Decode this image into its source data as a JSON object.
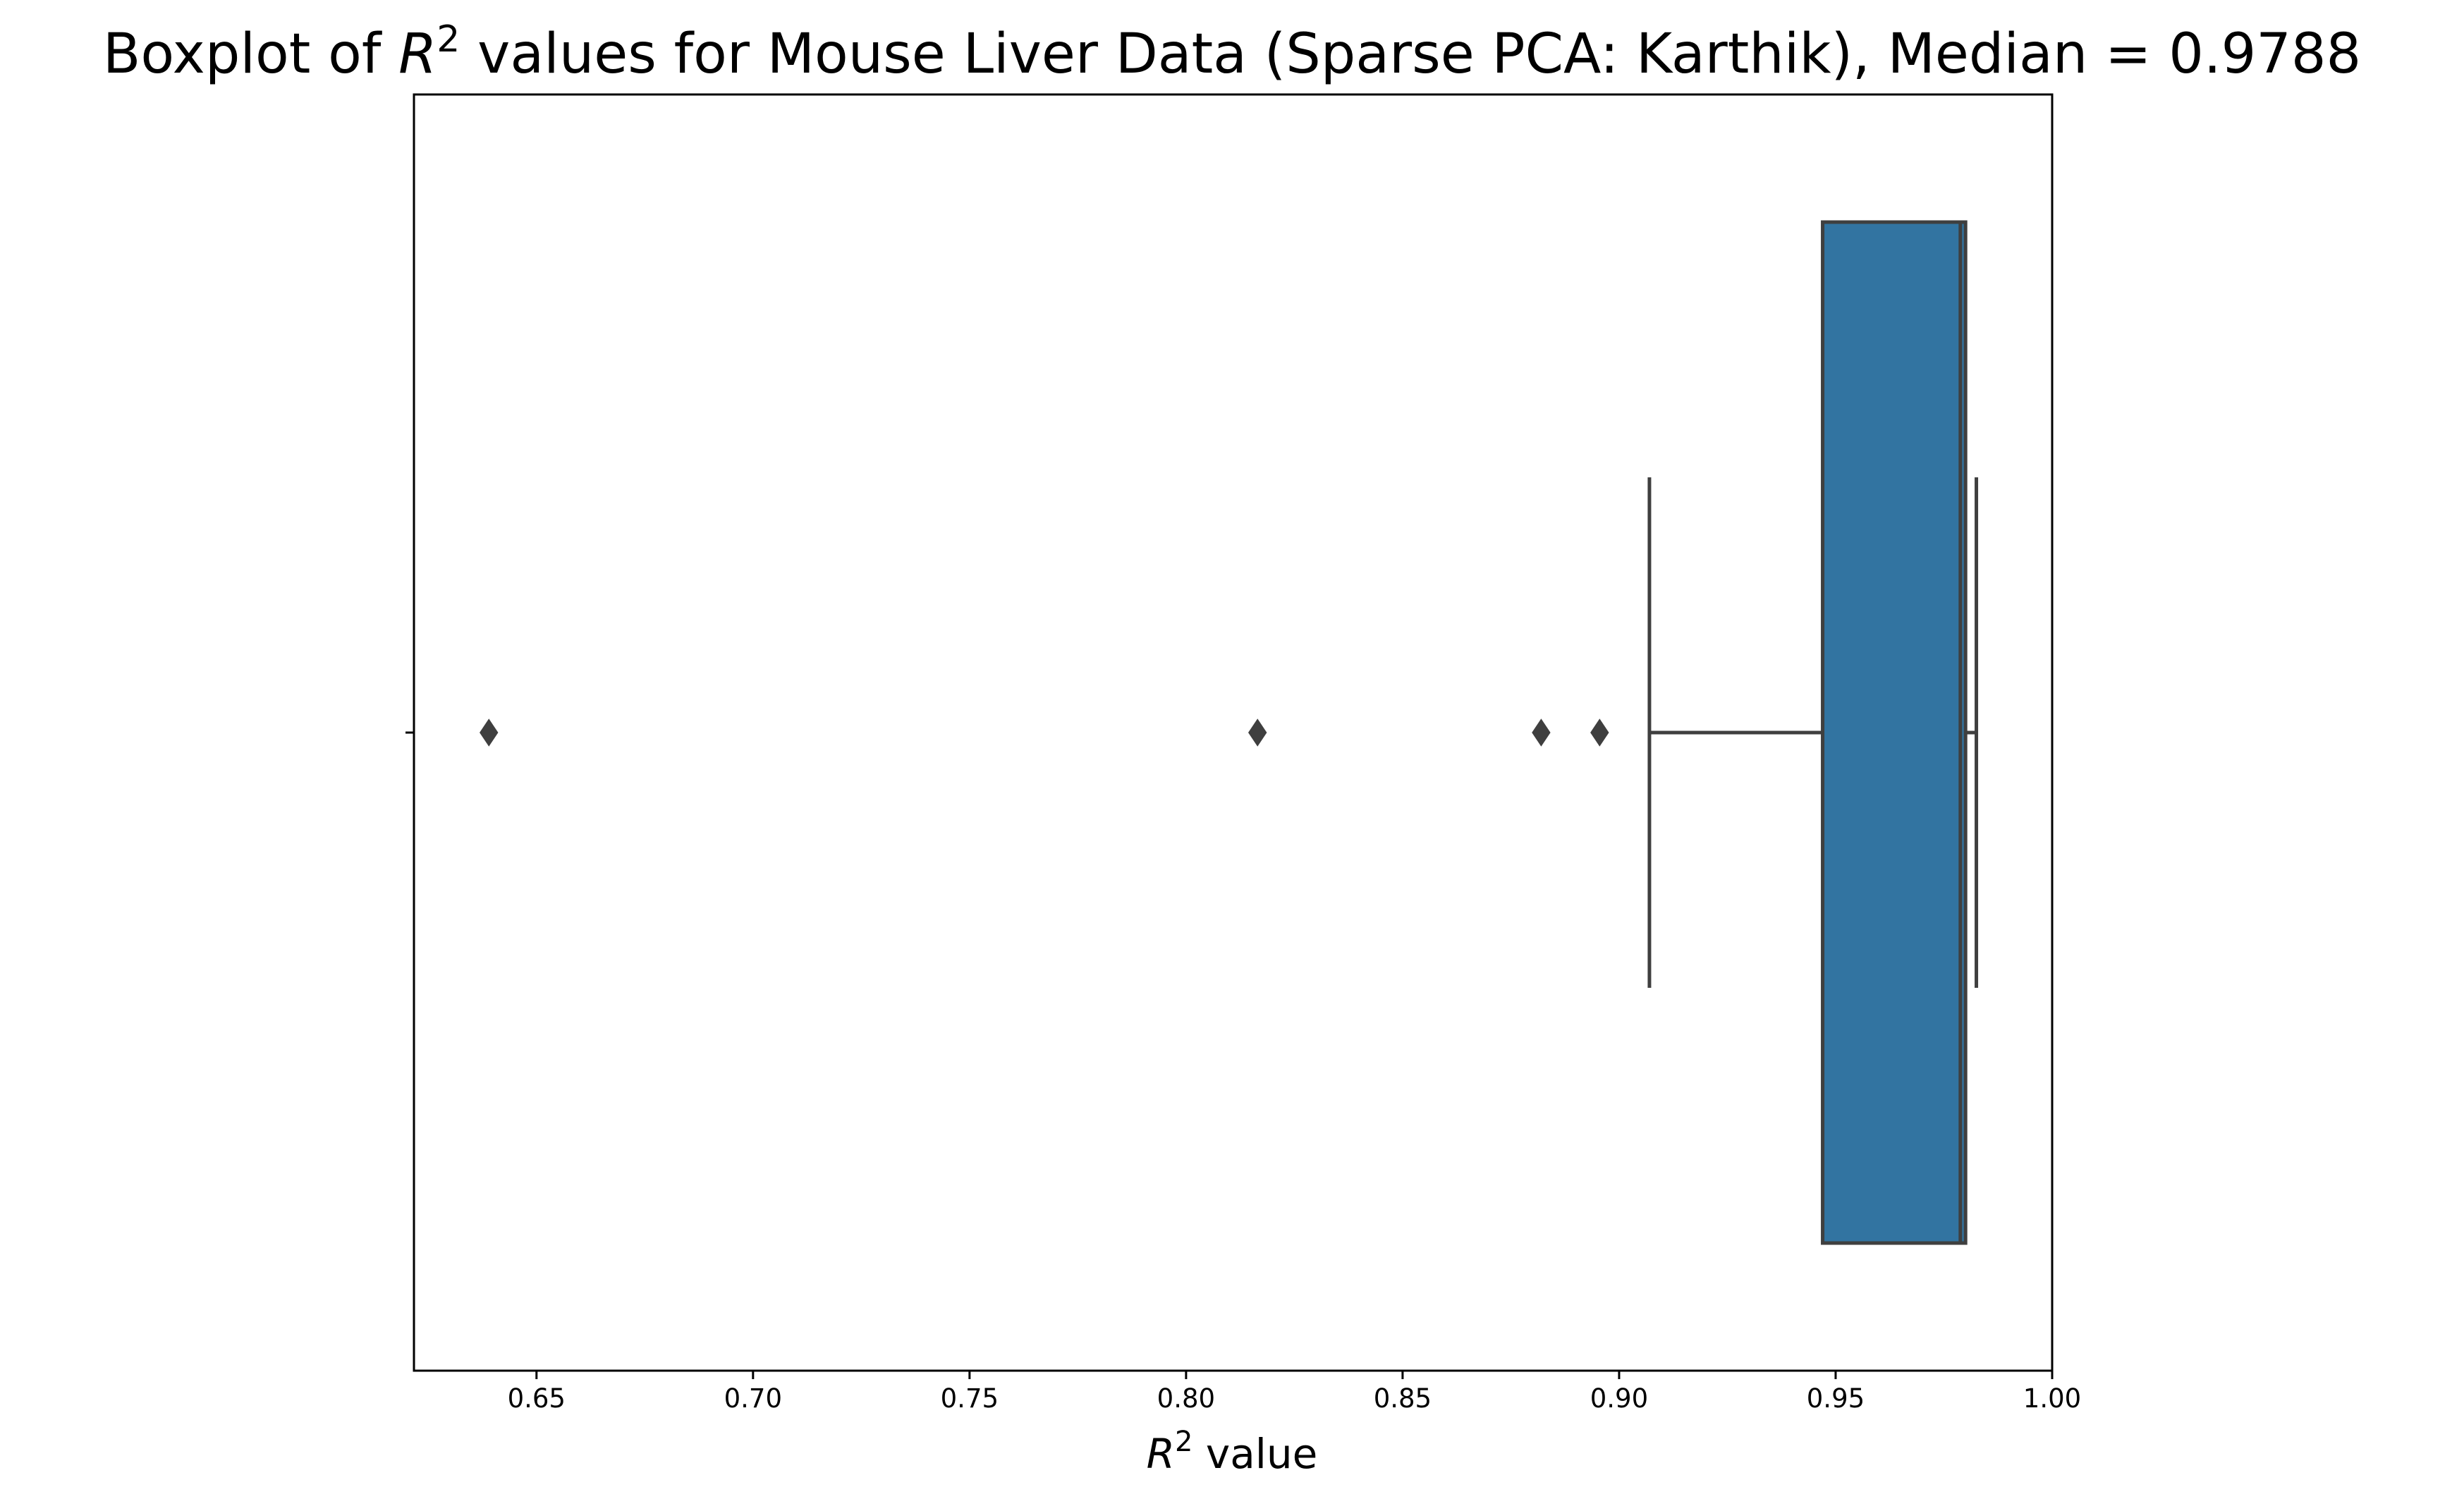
{
  "chart_data": {
    "type": "boxplot",
    "orientation": "horizontal",
    "title": {
      "prefix": "Boxplot of ",
      "var": "R",
      "sup": "2",
      "suffix": " values for Mouse Liver Data (Sparse PCA: Karthik), Median = 0.9788"
    },
    "xlabel": {
      "var": "R",
      "sup": "2",
      "suffix": " value"
    },
    "xlim": [
      0.6217,
      1.0
    ],
    "xticks": [
      0.65,
      0.7,
      0.75,
      0.8,
      0.85,
      0.9,
      0.95,
      1.0
    ],
    "xtick_labels": [
      "0.65",
      "0.70",
      "0.75",
      "0.80",
      "0.85",
      "0.90",
      "0.95",
      "1.00"
    ],
    "box": {
      "whisker_low": 0.907,
      "q1": 0.947,
      "median": 0.9788,
      "q3": 0.98,
      "whisker_high": 0.9825
    },
    "outliers": [
      0.639,
      0.8165,
      0.882,
      0.8955
    ],
    "colors": {
      "box_fill": "#3274a1",
      "line": "#3f3f3f",
      "axes": "#000000"
    },
    "grid": false
  }
}
